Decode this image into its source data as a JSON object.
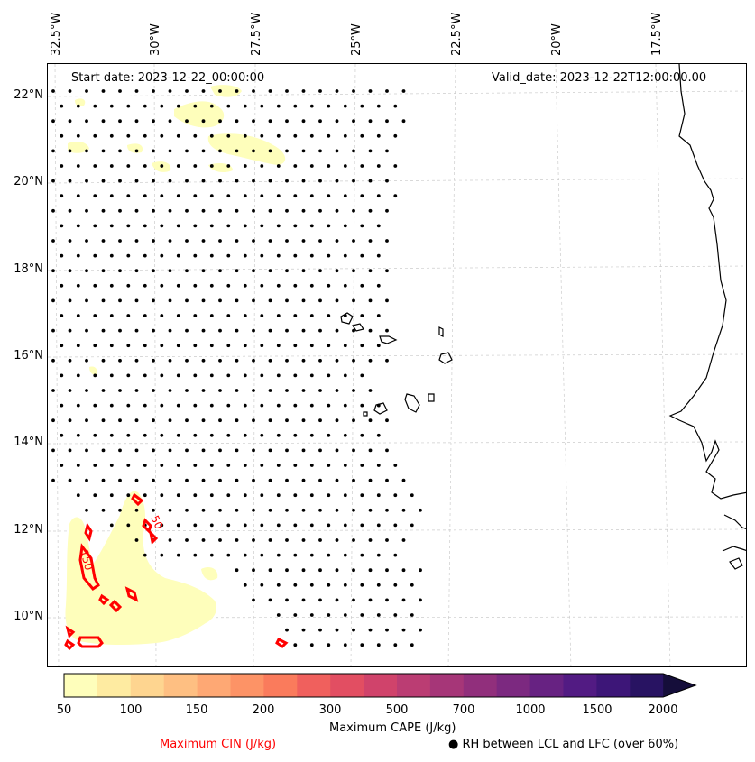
{
  "map": {
    "start_date": "Start date: 2023-12-22_00:00:00",
    "valid_date": "Valid_date: 2023-12-22T12:00:00.00",
    "lon_labels": [
      "32.5°W",
      "30°W",
      "27.5°W",
      "25°W",
      "22.5°W",
      "20°W",
      "17.5°W"
    ],
    "lat_labels": [
      "22°N",
      "20°N",
      "18°N",
      "16°N",
      "14°N",
      "12°N",
      "10°N"
    ],
    "cin_contour_labels": [
      "150",
      "50"
    ],
    "colors": {
      "cin_contour": "#ff0000",
      "coast": "#000000",
      "dots": "#000000",
      "grid": "#cccccc"
    }
  },
  "colorbar": {
    "tick_labels": [
      "50",
      "100",
      "150",
      "200",
      "300",
      "500",
      "700",
      "1000",
      "1500",
      "2000"
    ],
    "label": "Maximum CAPE (J/kg)",
    "colors": [
      "#fefebb",
      "#feeba1",
      "#fed590",
      "#febf82",
      "#fea874",
      "#fd9366",
      "#fa7b5c",
      "#f0605d",
      "#e24e62",
      "#d0436b",
      "#bb3d73",
      "#a63678",
      "#912f7c",
      "#7c2980",
      "#672282",
      "#521b83",
      "#3d1678",
      "#281362",
      "#150e3a"
    ]
  },
  "legend": {
    "cin_label": "Maximum CIN (J/kg)",
    "cin_color": "#ff0000",
    "rh_label": "RH between LCL and LFC (over 60%)",
    "rh_marker": "●"
  }
}
